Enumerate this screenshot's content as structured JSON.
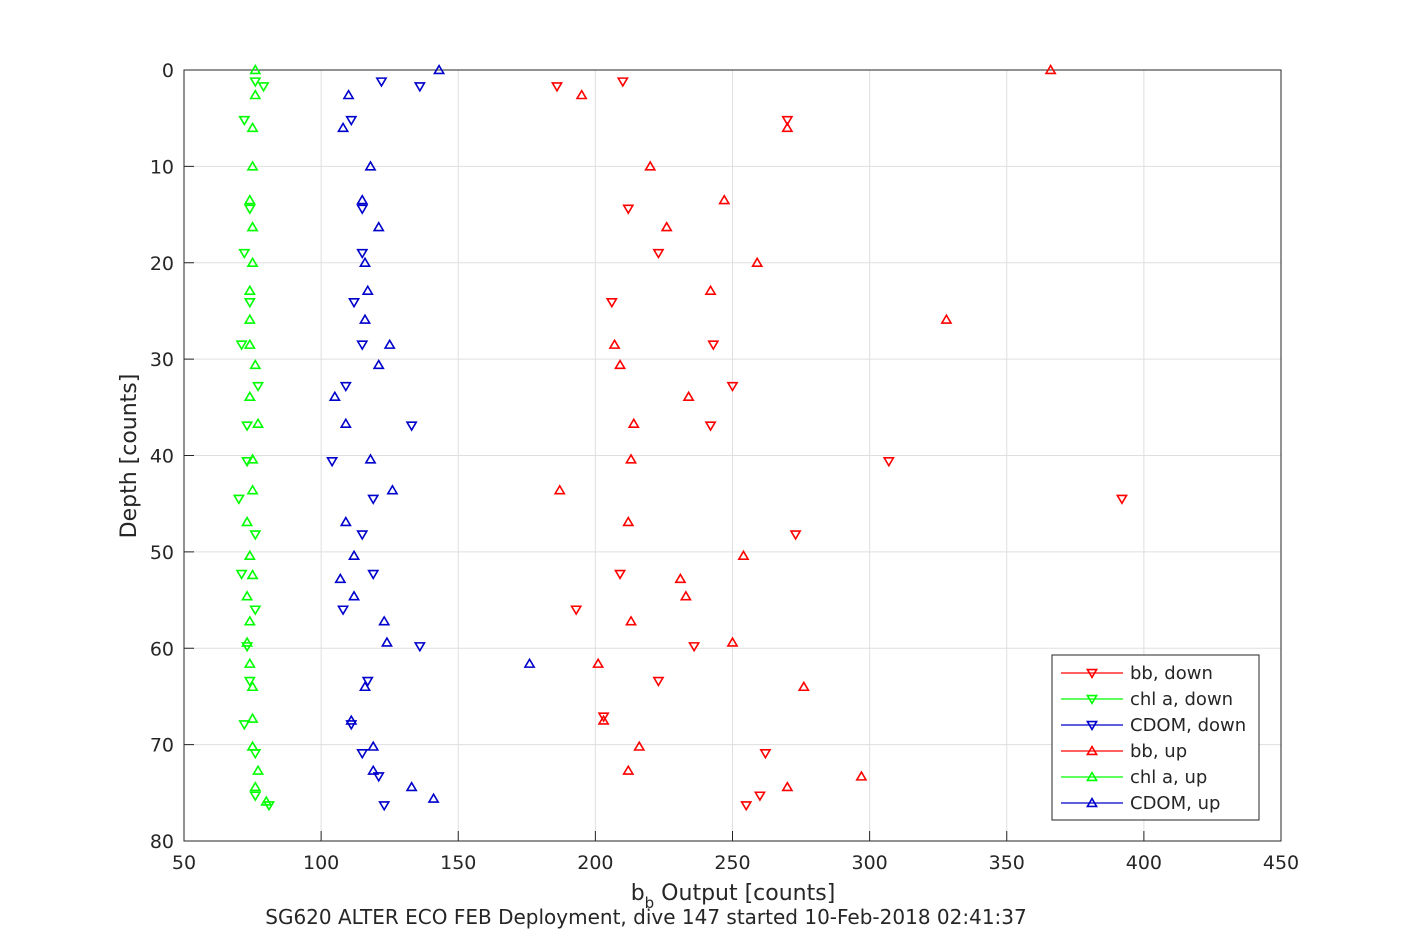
{
  "chart_data": {
    "type": "scatter",
    "xlabel_main": "b",
    "xlabel_sub": "b",
    "xlabel_rest": " Output [counts]",
    "ylabel": "Depth [counts]",
    "caption": "SG620 ALTER ECO FEB Deployment, dive 147 started 10-Feb-2018 02:41:37",
    "xlim": [
      50,
      450
    ],
    "ylim": [
      0,
      80
    ],
    "y_reversed": true,
    "grid": true,
    "legend_position": "bottom-right",
    "x_ticks": [
      50,
      100,
      150,
      200,
      250,
      300,
      350,
      400,
      450
    ],
    "x_tick_labels": [
      "50",
      "100",
      "150",
      "200",
      "250",
      "300",
      "350",
      "400",
      "450"
    ],
    "y_ticks": [
      0,
      10,
      20,
      30,
      40,
      50,
      60,
      70,
      80
    ],
    "y_tick_labels": [
      "0",
      "10",
      "20",
      "30",
      "40",
      "50",
      "60",
      "70",
      "80"
    ],
    "series": [
      {
        "name": "bb, down",
        "color": "#ff0000",
        "marker": "triangle-down",
        "points": [
          [
            186,
            1.7
          ],
          [
            210,
            1.2
          ],
          [
            270,
            5.2
          ],
          [
            212,
            14.4
          ],
          [
            223,
            19.0
          ],
          [
            206,
            24.1
          ],
          [
            243,
            28.5
          ],
          [
            250,
            32.8
          ],
          [
            242,
            36.9
          ],
          [
            307,
            40.6
          ],
          [
            392,
            44.5
          ],
          [
            273,
            48.2
          ],
          [
            209,
            52.3
          ],
          [
            193,
            56.0
          ],
          [
            236,
            59.8
          ],
          [
            223,
            63.4
          ],
          [
            203,
            67.1
          ],
          [
            262,
            70.9
          ],
          [
            260,
            75.3
          ],
          [
            255,
            76.3
          ]
        ]
      },
      {
        "name": "chl a, down",
        "color": "#00ff00",
        "marker": "triangle-down",
        "points": [
          [
            76,
            1.2
          ],
          [
            79,
            1.7
          ],
          [
            72,
            5.2
          ],
          [
            74,
            14.4
          ],
          [
            72,
            19.0
          ],
          [
            74,
            24.1
          ],
          [
            71,
            28.5
          ],
          [
            77,
            32.8
          ],
          [
            73,
            36.9
          ],
          [
            73,
            40.6
          ],
          [
            70,
            44.5
          ],
          [
            76,
            48.2
          ],
          [
            71,
            52.3
          ],
          [
            76,
            56.0
          ],
          [
            73,
            59.8
          ],
          [
            74,
            63.4
          ],
          [
            72,
            67.9
          ],
          [
            76,
            70.9
          ],
          [
            76,
            75.3
          ],
          [
            81,
            76.3
          ]
        ]
      },
      {
        "name": "CDOM, down",
        "color": "#0000cc",
        "marker": "triangle-down",
        "points": [
          [
            122,
            1.2
          ],
          [
            136,
            1.7
          ],
          [
            111,
            5.2
          ],
          [
            115,
            14.4
          ],
          [
            115,
            19.0
          ],
          [
            112,
            24.1
          ],
          [
            115,
            28.5
          ],
          [
            109,
            32.8
          ],
          [
            133,
            36.9
          ],
          [
            104,
            40.6
          ],
          [
            119,
            44.5
          ],
          [
            115,
            48.2
          ],
          [
            119,
            52.3
          ],
          [
            108,
            56.0
          ],
          [
            136,
            59.8
          ],
          [
            117,
            63.4
          ],
          [
            111,
            67.9
          ],
          [
            115,
            70.9
          ],
          [
            121,
            73.3
          ],
          [
            123,
            76.3
          ]
        ]
      },
      {
        "name": "bb, up",
        "color": "#ff0000",
        "marker": "triangle-up",
        "points": [
          [
            366,
            0.0
          ],
          [
            195,
            2.6
          ],
          [
            270,
            6.0
          ],
          [
            220,
            10.0
          ],
          [
            247,
            13.5
          ],
          [
            226,
            16.3
          ],
          [
            259,
            20.0
          ],
          [
            242,
            22.9
          ],
          [
            328,
            25.9
          ],
          [
            207,
            28.5
          ],
          [
            209,
            30.6
          ],
          [
            234,
            33.9
          ],
          [
            214,
            36.7
          ],
          [
            213,
            40.4
          ],
          [
            187,
            43.6
          ],
          [
            212,
            46.9
          ],
          [
            254,
            50.4
          ],
          [
            231,
            52.8
          ],
          [
            233,
            54.6
          ],
          [
            213,
            57.2
          ],
          [
            250,
            59.4
          ],
          [
            201,
            61.6
          ],
          [
            276,
            64.0
          ],
          [
            203,
            67.5
          ],
          [
            216,
            70.2
          ],
          [
            212,
            72.7
          ],
          [
            297,
            73.3
          ],
          [
            270,
            74.4
          ]
        ]
      },
      {
        "name": "chl a, up",
        "color": "#00ff00",
        "marker": "triangle-up",
        "points": [
          [
            76,
            0.0
          ],
          [
            76,
            2.6
          ],
          [
            75,
            6.0
          ],
          [
            75,
            10.0
          ],
          [
            74,
            13.5
          ],
          [
            75,
            16.3
          ],
          [
            75,
            20.0
          ],
          [
            74,
            22.9
          ],
          [
            74,
            25.9
          ],
          [
            74,
            28.5
          ],
          [
            76,
            30.6
          ],
          [
            74,
            33.9
          ],
          [
            77,
            36.7
          ],
          [
            75,
            40.4
          ],
          [
            75,
            43.6
          ],
          [
            73,
            46.9
          ],
          [
            74,
            50.4
          ],
          [
            75,
            52.4
          ],
          [
            73,
            54.6
          ],
          [
            74,
            57.2
          ],
          [
            73,
            59.4
          ],
          [
            74,
            61.6
          ],
          [
            75,
            64.0
          ],
          [
            75,
            67.3
          ],
          [
            75,
            70.2
          ],
          [
            77,
            72.7
          ],
          [
            76,
            74.4
          ],
          [
            80,
            75.9
          ]
        ]
      },
      {
        "name": "CDOM, up",
        "color": "#0000cc",
        "marker": "triangle-up",
        "points": [
          [
            143,
            0.0
          ],
          [
            110,
            2.6
          ],
          [
            108,
            6.0
          ],
          [
            118,
            10.0
          ],
          [
            115,
            13.5
          ],
          [
            121,
            16.3
          ],
          [
            116,
            20.0
          ],
          [
            117,
            22.9
          ],
          [
            116,
            25.9
          ],
          [
            125,
            28.5
          ],
          [
            121,
            30.6
          ],
          [
            105,
            33.9
          ],
          [
            109,
            36.7
          ],
          [
            118,
            40.4
          ],
          [
            126,
            43.6
          ],
          [
            109,
            46.9
          ],
          [
            112,
            50.4
          ],
          [
            107,
            52.8
          ],
          [
            112,
            54.6
          ],
          [
            123,
            57.2
          ],
          [
            124,
            59.4
          ],
          [
            176,
            61.6
          ],
          [
            116,
            64.0
          ],
          [
            111,
            67.5
          ],
          [
            119,
            70.2
          ],
          [
            119,
            72.7
          ],
          [
            133,
            74.4
          ],
          [
            141,
            75.6
          ]
        ]
      }
    ]
  }
}
